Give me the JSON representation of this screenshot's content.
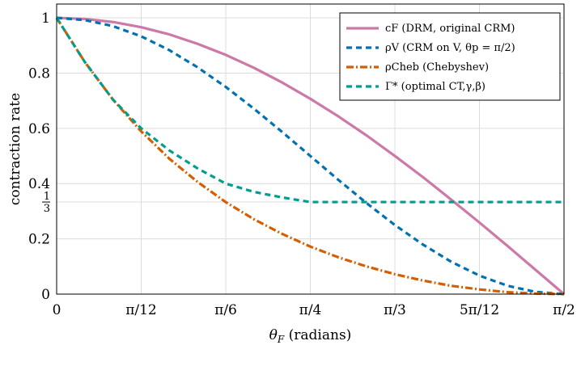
{
  "chart_data": {
    "type": "line",
    "xlabel": "θF (radians)",
    "ylabel": "contraction rate",
    "xlim": [
      0,
      1.5708
    ],
    "ylim": [
      0,
      1.05
    ],
    "grid": true,
    "legend_position": "top-right",
    "x_ticks": [
      {
        "value": 0,
        "label": "0"
      },
      {
        "value": 0.2618,
        "label": "π/12"
      },
      {
        "value": 0.5236,
        "label": "π/6"
      },
      {
        "value": 0.7854,
        "label": "π/4"
      },
      {
        "value": 1.0472,
        "label": "π/3"
      },
      {
        "value": 1.309,
        "label": "5π/12"
      },
      {
        "value": 1.5708,
        "label": "π/2"
      }
    ],
    "y_ticks": [
      {
        "value": 0,
        "label": "0"
      },
      {
        "value": 0.2,
        "label": "0.2"
      },
      {
        "value": 0.3333,
        "label": "1/3"
      },
      {
        "value": 0.4,
        "label": "0.4"
      },
      {
        "value": 0.6,
        "label": "0.6"
      },
      {
        "value": 0.8,
        "label": "0.8"
      },
      {
        "value": 1,
        "label": "1"
      }
    ],
    "x": [
      0,
      0.0873,
      0.1745,
      0.2618,
      0.3491,
      0.4363,
      0.5236,
      0.6109,
      0.6981,
      0.7854,
      0.8727,
      0.96,
      1.0472,
      1.1345,
      1.2217,
      1.309,
      1.3963,
      1.4835,
      1.5708
    ],
    "series": [
      {
        "name": "cF (DRM, original CRM)",
        "color": "#cc79a7",
        "dash": "solid",
        "values": [
          1,
          0.996,
          0.985,
          0.966,
          0.94,
          0.906,
          0.866,
          0.819,
          0.766,
          0.707,
          0.643,
          0.574,
          0.5,
          0.423,
          0.342,
          0.259,
          0.174,
          0.087,
          0
        ]
      },
      {
        "name": "ρV (CRM on V, θp = π/2)",
        "color": "#0072b2",
        "dash": "dashed",
        "values": [
          1,
          0.992,
          0.97,
          0.933,
          0.883,
          0.821,
          0.75,
          0.671,
          0.587,
          0.5,
          0.413,
          0.329,
          0.25,
          0.179,
          0.117,
          0.067,
          0.03,
          0.008,
          0
        ]
      },
      {
        "name": "ρCheb (Chebyshev)",
        "color": "#d55e00",
        "dash": "dashdot",
        "values": [
          1,
          0.84,
          0.704,
          0.589,
          0.49,
          0.406,
          0.333,
          0.271,
          0.218,
          0.172,
          0.133,
          0.1,
          0.072,
          0.049,
          0.03,
          0.017,
          0.007,
          0.002,
          0
        ]
      },
      {
        "name": "Γ* (optimal CT,γ,β)",
        "color": "#009e8f",
        "dash": "dashed-dashdot",
        "values": [
          1,
          0.84,
          0.704,
          0.6,
          0.52,
          0.455,
          0.4,
          0.37,
          0.35,
          0.3333,
          0.3333,
          0.3333,
          0.3333,
          0.3333,
          0.3333,
          0.3333,
          0.3333,
          0.3333,
          0.3333
        ]
      }
    ]
  }
}
